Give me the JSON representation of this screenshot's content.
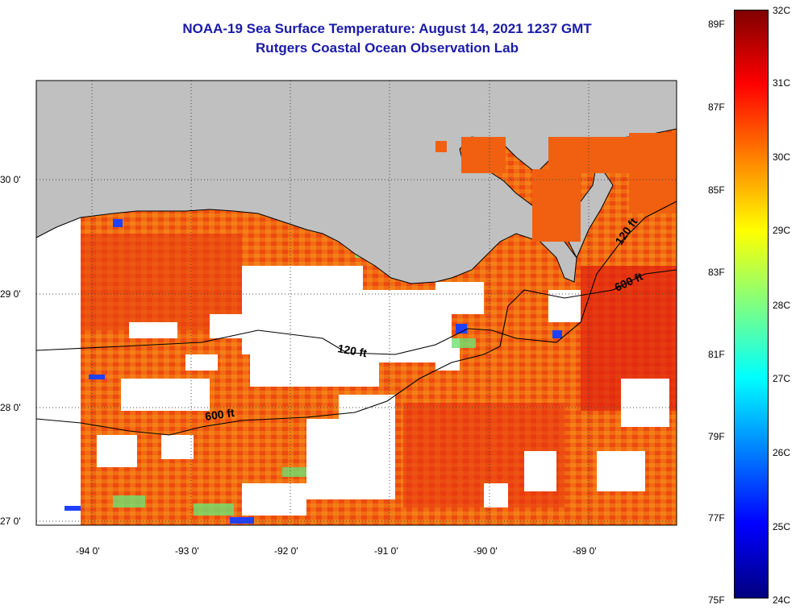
{
  "title": {
    "line1": "NOAA-19 Sea Surface Temperature:  August 14, 2021 1237 GMT",
    "line2": "Rutgers Coastal Ocean Observation Lab"
  },
  "axes": {
    "lon_labels": [
      "-94 0'",
      "-93 0'",
      "-92 0'",
      "-91 0'",
      "-90 0'",
      "-89 0'"
    ],
    "lat_labels": [
      "30 0'",
      "29 0'",
      "28 0'",
      "27 0'"
    ]
  },
  "contours": {
    "labels": [
      "120 ft",
      "600 ft",
      "120 ft",
      "600 ft"
    ]
  },
  "colorbar": {
    "fahrenheit": [
      "89F",
      "87F",
      "85F",
      "83F",
      "81F",
      "79F",
      "77F",
      "75F"
    ],
    "celsius": [
      "32C",
      "31C",
      "30C",
      "29C",
      "28C",
      "27C",
      "26C",
      "25C",
      "24C"
    ],
    "gradient": [
      "#000080",
      "#0000ff",
      "#0080ff",
      "#00ffff",
      "#80ff80",
      "#ffff00",
      "#ff8000",
      "#ff0000",
      "#800000"
    ]
  },
  "colors": {
    "land": "#c0c0c0",
    "ocean_warm": "#f06010",
    "ocean_hot": "#e83010",
    "cloud": "#ffffff",
    "title": "#1a1aa8"
  }
}
